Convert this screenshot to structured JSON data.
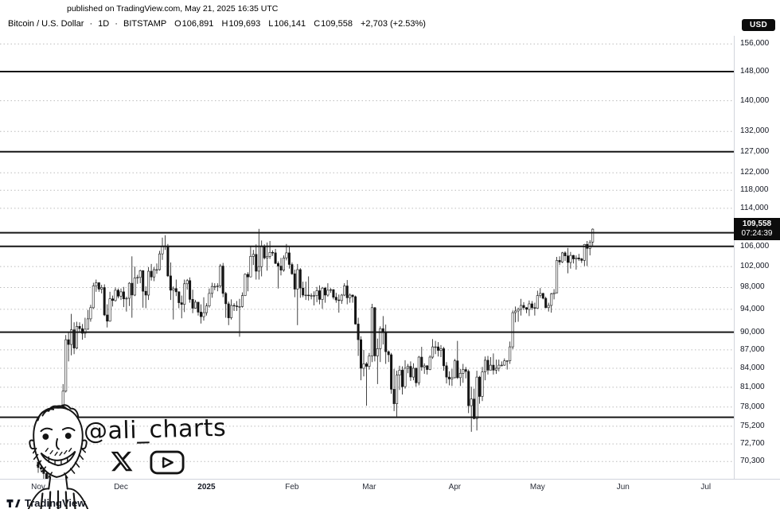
{
  "published_bar": {
    "text": "published on TradingView.com, May 21, 2025 16:35 UTC"
  },
  "header": {
    "symbol": "Bitcoin / U.S. Dollar",
    "separator": "·",
    "interval": "1D",
    "exchange": "BITSTAMP",
    "open_label": "O",
    "open": "106,891",
    "high_label": "H",
    "high": "109,693",
    "low_label": "L",
    "low": "106,141",
    "close_label": "C",
    "close": "109,558",
    "change": "+2,703 (+2.53%)",
    "currency_badge": "USD"
  },
  "price_tag": {
    "price": "109,558",
    "countdown": "07:24:39"
  },
  "watermark": {
    "handle": "@ali_charts",
    "icons": [
      "x-logo",
      "youtube-logo"
    ]
  },
  "footer": {
    "brand": "TradingView"
  },
  "chart_data": {
    "type": "candlestick",
    "title": "Bitcoin / U.S. Dollar 1D BITSTAMP",
    "scale": "logarithmic",
    "timeframe": "1D",
    "start_date": "2024-11-01",
    "end_date": "2025-05-21",
    "candle_units": "USD thousands [open, high, low, close]",
    "last_price": 109558,
    "countdown": "07:24:39",
    "solid_levels": [
      148000,
      127000,
      108800,
      106000,
      90000,
      76500
    ],
    "dashed_levels": [
      156000,
      140000,
      132000,
      122000,
      118000,
      114000,
      102000,
      98000,
      94000,
      87000,
      84000,
      81000,
      78000,
      75200,
      72700,
      70300
    ],
    "y_axis_labels": [
      {
        "price": 156000,
        "label": "156,000"
      },
      {
        "price": 148000,
        "label": "148,000"
      },
      {
        "price": 140000,
        "label": "140,000"
      },
      {
        "price": 132000,
        "label": "132,000"
      },
      {
        "price": 127000,
        "label": "127,000"
      },
      {
        "price": 122000,
        "label": "122,000"
      },
      {
        "price": 118000,
        "label": "118,000"
      },
      {
        "price": 114000,
        "label": "114,000"
      },
      {
        "price": 106000,
        "label": "106,000"
      },
      {
        "price": 102000,
        "label": "102,000"
      },
      {
        "price": 98000,
        "label": "98,000"
      },
      {
        "price": 94000,
        "label": "94,000"
      },
      {
        "price": 90000,
        "label": "90,000"
      },
      {
        "price": 87000,
        "label": "87,000"
      },
      {
        "price": 84000,
        "label": "84,000"
      },
      {
        "price": 81000,
        "label": "81,000"
      },
      {
        "price": 78000,
        "label": "78,000"
      },
      {
        "price": 75200,
        "label": "75,200"
      },
      {
        "price": 72700,
        "label": "72,700"
      },
      {
        "price": 70300,
        "label": "70,300"
      }
    ],
    "x_axis_labels": [
      {
        "label": "Nov",
        "day_index": 0
      },
      {
        "label": "Dec",
        "day_index": 30
      },
      {
        "label": "2025",
        "day_index": 61,
        "year": true
      },
      {
        "label": "Feb",
        "day_index": 92
      },
      {
        "label": "Mar",
        "day_index": 120
      },
      {
        "label": "Apr",
        "day_index": 151
      },
      {
        "label": "May",
        "day_index": 181
      },
      {
        "label": "Jun",
        "day_index": 212
      },
      {
        "label": "Jul",
        "day_index": 242
      }
    ],
    "candles": [
      [
        70.2,
        71.5,
        68.8,
        69.5
      ],
      [
        69.5,
        69.9,
        68.9,
        69.3
      ],
      [
        69.3,
        69.6,
        67.9,
        68.7
      ],
      [
        68.7,
        69.4,
        66.8,
        68.0
      ],
      [
        68.0,
        70.6,
        67.5,
        69.4
      ],
      [
        69.4,
        76.4,
        69.0,
        76.0
      ],
      [
        76.0,
        76.9,
        74.4,
        75.9
      ],
      [
        75.9,
        77.2,
        75.1,
        76.5
      ],
      [
        76.5,
        77.3,
        75.7,
        76.7
      ],
      [
        76.7,
        81.5,
        76.5,
        80.4
      ],
      [
        80.4,
        89.5,
        80.2,
        88.7
      ],
      [
        88.7,
        89.9,
        85.1,
        87.9
      ],
      [
        87.9,
        93.2,
        86.1,
        90.4
      ],
      [
        90.4,
        91.7,
        86.3,
        87.3
      ],
      [
        87.3,
        91.8,
        87.1,
        91.0
      ],
      [
        91.0,
        91.7,
        90.0,
        90.6
      ],
      [
        90.6,
        91.4,
        88.7,
        89.8
      ],
      [
        89.8,
        92.5,
        89.0,
        90.5
      ],
      [
        90.5,
        93.9,
        90.4,
        92.3
      ],
      [
        92.3,
        94.8,
        91.8,
        94.3
      ],
      [
        94.3,
        98.9,
        94.1,
        98.3
      ],
      [
        98.3,
        99.5,
        97.2,
        98.9
      ],
      [
        98.9,
        99.0,
        97.2,
        97.7
      ],
      [
        97.7,
        98.5,
        96.9,
        98.0
      ],
      [
        98.0,
        98.6,
        92.8,
        93.0
      ],
      [
        93.0,
        94.9,
        90.8,
        91.9
      ],
      [
        91.9,
        97.2,
        91.8,
        95.9
      ],
      [
        95.9,
        96.5,
        94.5,
        95.6
      ],
      [
        95.6,
        98.0,
        95.4,
        97.5
      ],
      [
        97.5,
        97.8,
        96.0,
        96.4
      ],
      [
        96.4,
        97.8,
        95.7,
        97.2
      ],
      [
        97.2,
        98.1,
        94.4,
        95.9
      ],
      [
        95.9,
        96.3,
        93.6,
        96.0
      ],
      [
        96.0,
        99.0,
        94.6,
        98.8
      ],
      [
        98.8,
        104.0,
        92.5,
        96.6
      ],
      [
        96.6,
        102.0,
        96.4,
        99.8
      ],
      [
        99.8,
        100.4,
        98.7,
        99.9
      ],
      [
        99.9,
        101.4,
        98.8,
        101.2
      ],
      [
        101.2,
        101.3,
        94.3,
        97.3
      ],
      [
        97.3,
        98.2,
        94.2,
        96.6
      ],
      [
        96.6,
        101.9,
        95.7,
        101.1
      ],
      [
        101.1,
        102.5,
        99.3,
        100.0
      ],
      [
        100.0,
        101.9,
        99.2,
        101.4
      ],
      [
        101.4,
        102.6,
        100.6,
        101.4
      ],
      [
        101.4,
        105.1,
        101.2,
        104.5
      ],
      [
        104.5,
        107.8,
        103.3,
        106.0
      ],
      [
        106.0,
        108.3,
        105.3,
        106.1
      ],
      [
        106.1,
        106.5,
        100.0,
        100.2
      ],
      [
        100.2,
        102.8,
        95.7,
        97.5
      ],
      [
        97.5,
        98.2,
        92.2,
        97.8
      ],
      [
        97.8,
        99.5,
        96.4,
        97.2
      ],
      [
        97.2,
        97.3,
        94.2,
        95.2
      ],
      [
        95.2,
        96.5,
        92.4,
        94.9
      ],
      [
        94.9,
        99.5,
        93.5,
        98.7
      ],
      [
        98.7,
        99.6,
        97.6,
        99.3
      ],
      [
        99.3,
        99.9,
        95.2,
        95.8
      ],
      [
        95.8,
        97.6,
        93.3,
        94.2
      ],
      [
        94.2,
        95.7,
        94.1,
        95.3
      ],
      [
        95.3,
        95.3,
        92.9,
        93.5
      ],
      [
        93.5,
        94.9,
        91.5,
        92.7
      ],
      [
        92.7,
        96.2,
        92.0,
        93.4
      ],
      [
        93.4,
        95.1,
        92.9,
        94.6
      ],
      [
        94.6,
        97.8,
        94.3,
        96.9
      ],
      [
        96.9,
        98.9,
        96.1,
        98.2
      ],
      [
        98.2,
        98.8,
        97.5,
        98.2
      ],
      [
        98.2,
        98.8,
        97.3,
        98.3
      ],
      [
        98.3,
        102.5,
        97.9,
        102.1
      ],
      [
        102.1,
        102.7,
        96.2,
        96.9
      ],
      [
        96.9,
        97.2,
        92.5,
        95.0
      ],
      [
        95.0,
        95.4,
        91.2,
        92.5
      ],
      [
        92.5,
        95.8,
        92.2,
        94.7
      ],
      [
        94.7,
        95.1,
        93.7,
        94.6
      ],
      [
        94.6,
        95.5,
        93.7,
        94.5
      ],
      [
        94.5,
        95.9,
        89.2,
        94.5
      ],
      [
        94.5,
        97.1,
        94.3,
        96.5
      ],
      [
        96.5,
        100.7,
        96.4,
        100.5
      ],
      [
        100.5,
        100.9,
        97.3,
        100.0
      ],
      [
        100.0,
        105.9,
        99.9,
        104.0
      ],
      [
        104.0,
        105.3,
        102.3,
        104.4
      ],
      [
        104.4,
        106.4,
        99.5,
        101.1
      ],
      [
        101.1,
        109.6,
        99.5,
        102.0
      ],
      [
        102.0,
        107.2,
        100.1,
        106.1
      ],
      [
        106.1,
        106.4,
        103.4,
        103.7
      ],
      [
        103.7,
        106.8,
        101.2,
        104.0
      ],
      [
        104.0,
        107.1,
        103.5,
        104.8
      ],
      [
        104.8,
        105.2,
        104.1,
        104.7
      ],
      [
        104.7,
        105.5,
        102.5,
        102.6
      ],
      [
        102.6,
        103.0,
        97.8,
        102.1
      ],
      [
        102.1,
        103.7,
        100.3,
        101.3
      ],
      [
        101.3,
        104.2,
        101.0,
        103.7
      ],
      [
        103.7,
        106.5,
        103.2,
        104.7
      ],
      [
        104.7,
        106.0,
        101.6,
        102.4
      ],
      [
        102.4,
        102.8,
        100.4,
        100.6
      ],
      [
        100.6,
        101.4,
        96.2,
        97.7
      ],
      [
        97.7,
        102.5,
        91.2,
        101.4
      ],
      [
        101.4,
        101.7,
        96.1,
        97.9
      ],
      [
        97.9,
        99.1,
        96.2,
        96.6
      ],
      [
        96.6,
        99.1,
        95.7,
        96.6
      ],
      [
        96.6,
        100.1,
        95.6,
        96.5
      ],
      [
        96.5,
        96.9,
        95.8,
        96.5
      ],
      [
        96.5,
        97.3,
        94.7,
        96.5
      ],
      [
        96.5,
        98.1,
        95.3,
        97.4
      ],
      [
        97.4,
        98.4,
        94.9,
        95.8
      ],
      [
        95.8,
        98.1,
        94.1,
        97.9
      ],
      [
        97.9,
        98.1,
        95.2,
        96.6
      ],
      [
        96.6,
        98.8,
        96.3,
        97.5
      ],
      [
        97.5,
        97.9,
        97.0,
        97.6
      ],
      [
        97.6,
        97.7,
        95.8,
        96.2
      ],
      [
        96.2,
        97.0,
        95.2,
        95.7
      ],
      [
        95.7,
        96.7,
        93.4,
        95.6
      ],
      [
        95.6,
        96.8,
        95.0,
        96.6
      ],
      [
        96.6,
        98.8,
        96.4,
        98.3
      ],
      [
        98.3,
        99.4,
        94.9,
        96.1
      ],
      [
        96.1,
        96.9,
        95.2,
        96.6
      ],
      [
        96.6,
        96.7,
        95.2,
        96.3
      ],
      [
        96.3,
        96.5,
        91.3,
        91.4
      ],
      [
        91.4,
        92.5,
        86.0,
        88.7
      ],
      [
        88.7,
        89.3,
        82.1,
        84.0
      ],
      [
        84.0,
        87.0,
        82.7,
        84.7
      ],
      [
        84.7,
        85.0,
        78.2,
        84.3
      ],
      [
        84.3,
        86.5,
        83.8,
        86.0
      ],
      [
        86.0,
        95.0,
        85.0,
        94.3
      ],
      [
        94.3,
        94.4,
        85.1,
        86.0
      ],
      [
        86.0,
        88.9,
        81.5,
        87.2
      ],
      [
        87.2,
        91.0,
        85.0,
        90.6
      ],
      [
        90.6,
        92.8,
        87.9,
        89.9
      ],
      [
        89.9,
        91.3,
        84.7,
        86.7
      ],
      [
        86.7,
        86.9,
        85.0,
        86.2
      ],
      [
        86.2,
        86.5,
        80.0,
        80.7
      ],
      [
        80.7,
        83.9,
        77.4,
        78.5
      ],
      [
        78.5,
        83.6,
        76.6,
        82.9
      ],
      [
        82.9,
        84.4,
        80.6,
        83.7
      ],
      [
        83.7,
        84.3,
        79.9,
        81.1
      ],
      [
        81.1,
        85.3,
        80.8,
        84.0
      ],
      [
        84.0,
        84.7,
        83.2,
        84.3
      ],
      [
        84.3,
        85.1,
        82.0,
        82.6
      ],
      [
        82.6,
        84.8,
        82.1,
        84.0
      ],
      [
        84.0,
        84.1,
        81.1,
        81.7
      ],
      [
        81.7,
        86.0,
        81.3,
        85.8
      ],
      [
        85.8,
        87.5,
        83.6,
        84.2
      ],
      [
        84.2,
        84.8,
        83.1,
        84.4
      ],
      [
        84.4,
        84.5,
        83.0,
        83.8
      ],
      [
        83.8,
        86.1,
        83.7,
        85.8
      ],
      [
        85.8,
        88.8,
        85.5,
        87.5
      ],
      [
        87.5,
        88.5,
        86.3,
        87.5
      ],
      [
        87.5,
        88.3,
        85.9,
        86.9
      ],
      [
        86.9,
        87.8,
        85.8,
        87.2
      ],
      [
        87.2,
        87.5,
        83.6,
        84.4
      ],
      [
        84.4,
        85.0,
        81.6,
        82.6
      ],
      [
        82.6,
        83.5,
        81.3,
        82.3
      ],
      [
        82.3,
        83.9,
        81.2,
        82.5
      ],
      [
        82.5,
        85.5,
        82.4,
        85.2
      ],
      [
        85.2,
        88.5,
        82.3,
        82.5
      ],
      [
        82.5,
        83.9,
        81.2,
        83.2
      ],
      [
        83.2,
        84.7,
        81.7,
        83.8
      ],
      [
        83.8,
        84.2,
        82.4,
        83.5
      ],
      [
        83.5,
        83.8,
        77.1,
        78.2
      ],
      [
        78.2,
        81.1,
        74.4,
        79.2
      ],
      [
        79.2,
        80.8,
        76.2,
        76.3
      ],
      [
        76.3,
        83.6,
        74.6,
        82.6
      ],
      [
        82.6,
        82.8,
        78.5,
        79.6
      ],
      [
        79.6,
        84.2,
        78.9,
        83.4
      ],
      [
        83.4,
        85.9,
        82.1,
        85.3
      ],
      [
        85.3,
        86.0,
        83.0,
        83.7
      ],
      [
        83.7,
        85.8,
        83.7,
        84.5
      ],
      [
        84.5,
        86.4,
        83.0,
        83.7
      ],
      [
        83.7,
        85.4,
        83.1,
        84.0
      ],
      [
        84.0,
        85.4,
        83.5,
        84.5
      ],
      [
        84.5,
        85.1,
        84.3,
        84.5
      ],
      [
        84.5,
        85.6,
        84.4,
        85.2
      ],
      [
        85.2,
        85.3,
        83.8,
        85.2
      ],
      [
        85.2,
        88.4,
        84.7,
        87.5
      ],
      [
        87.5,
        93.8,
        87.1,
        93.4
      ],
      [
        93.4,
        94.5,
        91.7,
        93.7
      ],
      [
        93.7,
        94.3,
        91.8,
        94.0
      ],
      [
        94.0,
        95.9,
        92.9,
        94.7
      ],
      [
        94.7,
        95.3,
        93.9,
        94.3
      ],
      [
        94.3,
        94.4,
        93.3,
        94.0
      ],
      [
        94.0,
        95.6,
        92.8,
        95.0
      ],
      [
        95.0,
        95.5,
        93.9,
        94.3
      ],
      [
        94.3,
        95.2,
        92.9,
        94.2
      ],
      [
        94.2,
        97.4,
        94.1,
        96.5
      ],
      [
        96.5,
        97.9,
        96.1,
        96.9
      ],
      [
        96.9,
        97.0,
        95.8,
        96.0
      ],
      [
        96.0,
        96.3,
        94.2,
        94.3
      ],
      [
        94.3,
        95.2,
        93.6,
        94.7
      ],
      [
        94.7,
        97.0,
        93.4,
        96.8
      ],
      [
        96.8,
        97.7,
        95.8,
        97.0
      ],
      [
        97.0,
        103.9,
        96.9,
        103.2
      ],
      [
        103.2,
        104.0,
        102.3,
        102.9
      ],
      [
        102.9,
        104.9,
        102.7,
        104.7
      ],
      [
        104.7,
        105.0,
        103.1,
        104.1
      ],
      [
        104.1,
        105.7,
        100.7,
        102.8
      ],
      [
        102.8,
        104.9,
        101.6,
        104.2
      ],
      [
        104.2,
        104.3,
        102.6,
        103.5
      ],
      [
        103.5,
        104.2,
        101.4,
        103.7
      ],
      [
        103.7,
        104.5,
        103.1,
        103.5
      ],
      [
        103.5,
        103.7,
        102.7,
        103.2
      ],
      [
        103.2,
        106.5,
        102.1,
        106.4
      ],
      [
        106.4,
        107.1,
        102.1,
        105.6
      ],
      [
        105.6,
        107.3,
        104.2,
        106.8
      ],
      [
        106.891,
        109.693,
        106.141,
        109.558
      ]
    ]
  }
}
